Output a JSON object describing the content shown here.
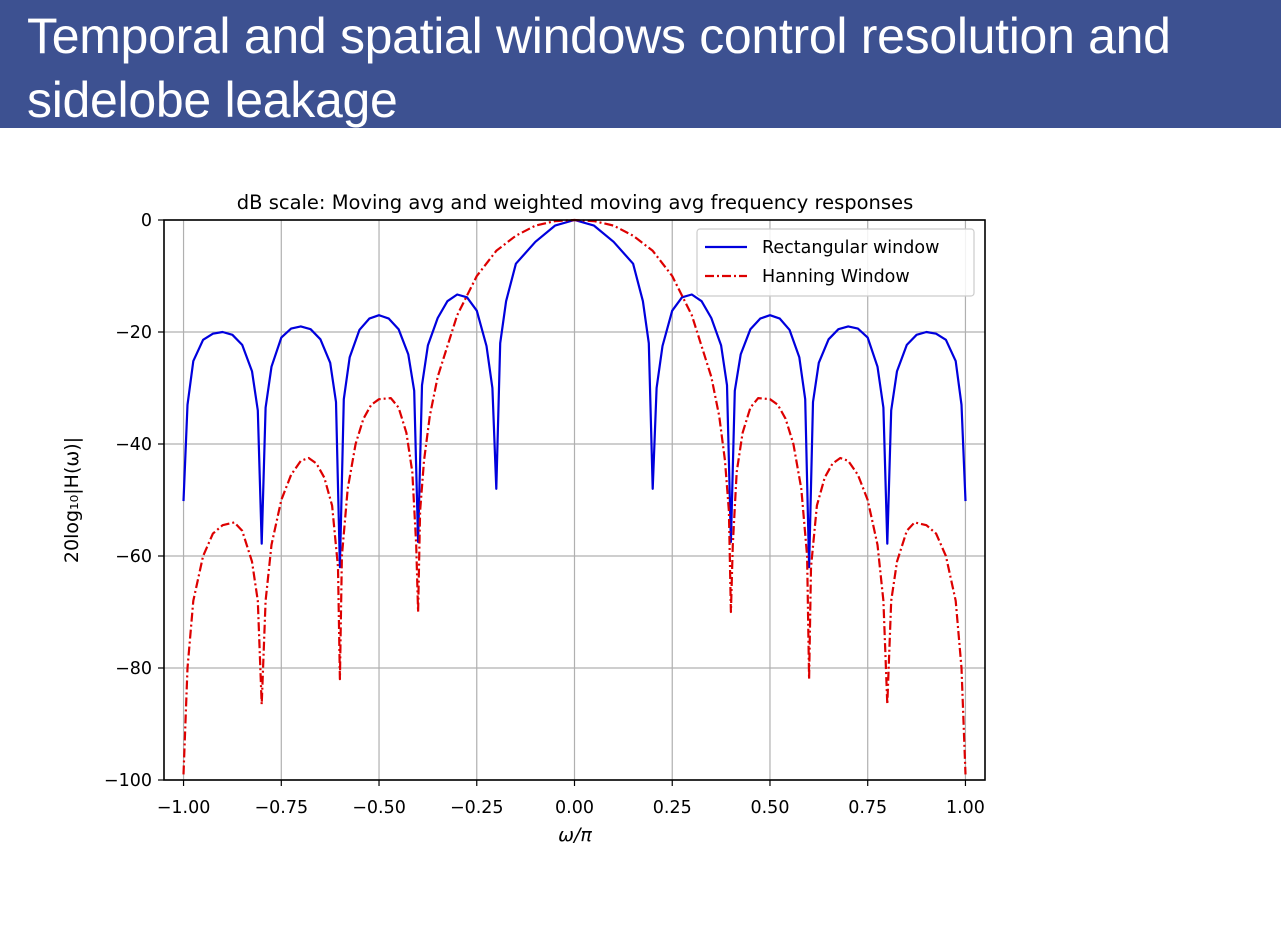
{
  "slide": {
    "title": "Temporal and spatial windows control resolution and sidelobe leakage"
  },
  "chart_data": {
    "type": "line",
    "title": "dB scale:  Moving avg and weighted moving avg frequency responses",
    "xlabel": "ω/π",
    "ylabel": "20log₁₀|H(ω)|",
    "xlim": [
      -1.05,
      1.05
    ],
    "ylim": [
      -100,
      0
    ],
    "xticks": [
      -1.0,
      -0.75,
      -0.5,
      -0.25,
      0.0,
      0.25,
      0.5,
      0.75,
      1.0
    ],
    "xtick_labels": [
      "−1.00",
      "−0.75",
      "−0.50",
      "−0.25",
      "0.00",
      "0.25",
      "0.50",
      "0.75",
      "1.00"
    ],
    "yticks": [
      0,
      -20,
      -40,
      -60,
      -80,
      -100
    ],
    "ytick_labels": [
      "0",
      "−20",
      "−40",
      "−60",
      "−80",
      "−100"
    ],
    "grid": true,
    "legend_position": "top-right",
    "series": [
      {
        "name": "Rectangular window",
        "color": "#0000dd",
        "style": "solid",
        "x": [
          -1.0,
          -0.99,
          -0.975,
          -0.95,
          -0.925,
          -0.9,
          -0.875,
          -0.85,
          -0.825,
          -0.81,
          -0.8,
          -0.79,
          -0.775,
          -0.75,
          -0.725,
          -0.7,
          -0.675,
          -0.65,
          -0.625,
          -0.61,
          -0.6,
          -0.59,
          -0.575,
          -0.55,
          -0.525,
          -0.5,
          -0.475,
          -0.45,
          -0.425,
          -0.41,
          -0.4,
          -0.39,
          -0.375,
          -0.35,
          -0.325,
          -0.3,
          -0.275,
          -0.25,
          -0.225,
          -0.21,
          -0.2,
          -0.19,
          -0.175,
          -0.15,
          -0.1,
          -0.05,
          0.0,
          0.05,
          0.1,
          0.15,
          0.175,
          0.19,
          0.2,
          0.21,
          0.225,
          0.25,
          0.275,
          0.3,
          0.325,
          0.35,
          0.375,
          0.39,
          0.4,
          0.41,
          0.425,
          0.45,
          0.475,
          0.5,
          0.525,
          0.55,
          0.575,
          0.59,
          0.6,
          0.61,
          0.625,
          0.65,
          0.675,
          0.7,
          0.725,
          0.75,
          0.775,
          0.79,
          0.8,
          0.81,
          0.825,
          0.85,
          0.875,
          0.9,
          0.925,
          0.95,
          0.975,
          0.99,
          1.0
        ],
        "y": [
          -50.2,
          -33.0,
          -25.2,
          -21.4,
          -20.3,
          -20.0,
          -20.5,
          -22.3,
          -27.0,
          -34.0,
          -57.8,
          -33.5,
          -26.2,
          -21.0,
          -19.4,
          -19.0,
          -19.5,
          -21.3,
          -25.5,
          -32.5,
          -62.0,
          -32.0,
          -24.5,
          -19.6,
          -17.6,
          -17.0,
          -17.6,
          -19.5,
          -24.0,
          -30.5,
          -57.5,
          -29.5,
          -22.4,
          -17.5,
          -14.5,
          -13.3,
          -13.8,
          -16.2,
          -22.5,
          -30.0,
          -48.0,
          -22.0,
          -14.5,
          -7.8,
          -3.9,
          -1.0,
          0.0,
          -1.0,
          -3.9,
          -7.8,
          -14.5,
          -22.0,
          -48.0,
          -30.0,
          -22.5,
          -16.2,
          -13.8,
          -13.3,
          -14.5,
          -17.5,
          -22.4,
          -29.5,
          -57.5,
          -30.5,
          -24.0,
          -19.5,
          -17.6,
          -17.0,
          -17.6,
          -19.6,
          -24.5,
          -32.0,
          -62.0,
          -32.5,
          -25.5,
          -21.3,
          -19.5,
          -19.0,
          -19.4,
          -21.0,
          -26.2,
          -33.5,
          -57.8,
          -34.0,
          -27.0,
          -22.3,
          -20.5,
          -20.0,
          -20.3,
          -21.4,
          -25.2,
          -33.0,
          -50.2
        ]
      },
      {
        "name": "Hanning Window",
        "color": "#dd0000",
        "style": "dashdot",
        "x": [
          -1.0,
          -0.99,
          -0.975,
          -0.95,
          -0.925,
          -0.9,
          -0.87,
          -0.85,
          -0.825,
          -0.81,
          -0.8,
          -0.79,
          -0.775,
          -0.75,
          -0.725,
          -0.7,
          -0.68,
          -0.66,
          -0.64,
          -0.62,
          -0.605,
          -0.6,
          -0.595,
          -0.58,
          -0.56,
          -0.54,
          -0.52,
          -0.5,
          -0.47,
          -0.45,
          -0.43,
          -0.415,
          -0.405,
          -0.4,
          -0.395,
          -0.385,
          -0.37,
          -0.35,
          -0.3,
          -0.25,
          -0.2,
          -0.15,
          -0.1,
          -0.05,
          0.0,
          0.05,
          0.1,
          0.15,
          0.2,
          0.25,
          0.3,
          0.35,
          0.37,
          0.385,
          0.395,
          0.4,
          0.405,
          0.415,
          0.43,
          0.45,
          0.47,
          0.5,
          0.52,
          0.54,
          0.56,
          0.58,
          0.595,
          0.6,
          0.605,
          0.62,
          0.64,
          0.66,
          0.68,
          0.7,
          0.725,
          0.75,
          0.775,
          0.79,
          0.8,
          0.81,
          0.825,
          0.85,
          0.87,
          0.9,
          0.925,
          0.95,
          0.975,
          0.99,
          1.0
        ],
        "y": [
          -99.0,
          -80.0,
          -68.0,
          -60.0,
          -56.0,
          -54.5,
          -54.0,
          -55.5,
          -61.0,
          -68.0,
          -86.5,
          -68.0,
          -58.0,
          -50.0,
          -45.5,
          -43.0,
          -42.5,
          -43.5,
          -46.0,
          -51.0,
          -62.0,
          -82.0,
          -60.0,
          -48.0,
          -40.0,
          -35.5,
          -33.0,
          -32.0,
          -31.8,
          -33.5,
          -38.0,
          -45.0,
          -58.0,
          -70.0,
          -52.0,
          -43.0,
          -35.0,
          -28.0,
          -17.0,
          -10.0,
          -5.5,
          -2.8,
          -1.0,
          -0.2,
          0.0,
          -0.2,
          -1.0,
          -2.8,
          -5.5,
          -10.0,
          -17.0,
          -28.0,
          -35.0,
          -43.0,
          -52.0,
          -70.0,
          -58.0,
          -45.0,
          -38.0,
          -33.5,
          -31.8,
          -32.0,
          -33.0,
          -35.5,
          -40.0,
          -48.0,
          -60.0,
          -82.0,
          -62.0,
          -51.0,
          -46.0,
          -43.5,
          -42.5,
          -43.0,
          -45.5,
          -50.0,
          -58.0,
          -68.0,
          -86.5,
          -68.0,
          -61.0,
          -55.5,
          -54.0,
          -54.5,
          -56.0,
          -60.0,
          -68.0,
          -80.0,
          -99.0
        ]
      }
    ]
  }
}
